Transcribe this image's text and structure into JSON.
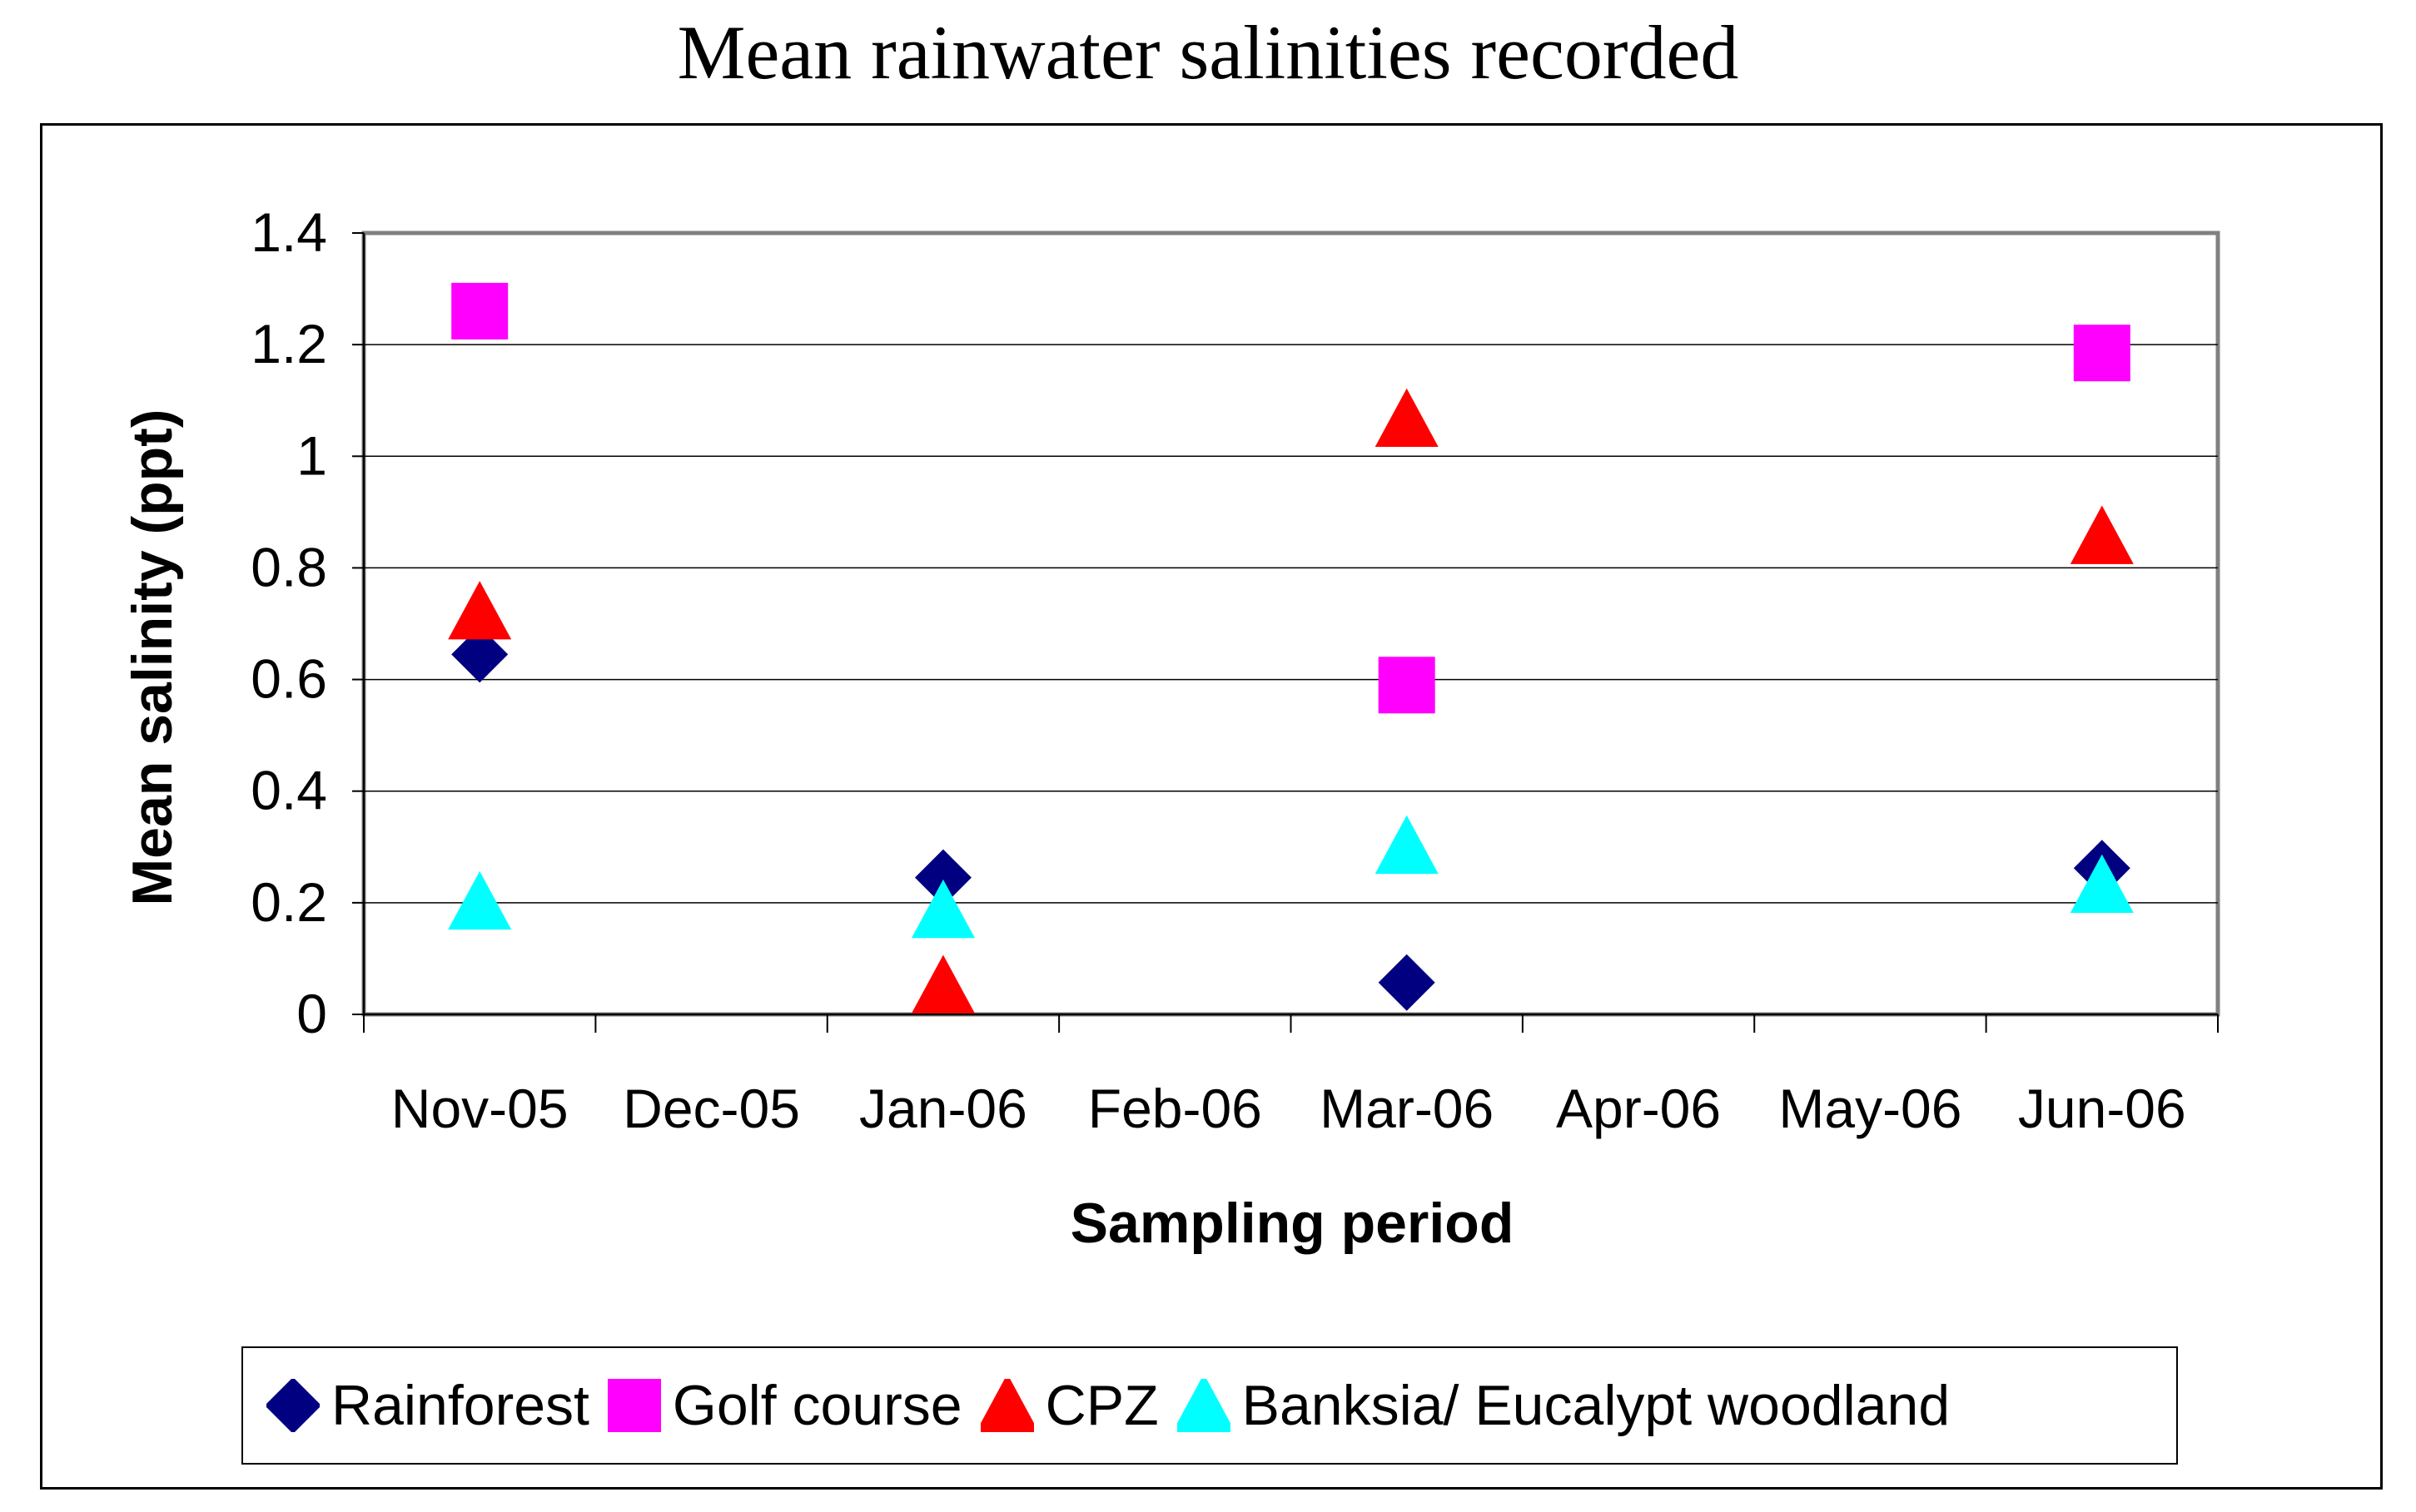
{
  "chart_data": {
    "type": "scatter",
    "title": "Mean rainwater salinities recorded",
    "xlabel": "Sampling period",
    "ylabel": "Mean salinity (ppt)",
    "categories": [
      "Nov-05",
      "Dec-05",
      "Jan-06",
      "Feb-06",
      "Mar-06",
      "Apr-06",
      "May-06",
      "Jun-06"
    ],
    "ylim": [
      0,
      1.4
    ],
    "yticks": [
      0,
      0.2,
      0.4,
      0.6,
      0.8,
      1,
      1.2,
      1.4
    ],
    "ytick_labels": [
      "0",
      "0.2",
      "0.4",
      "0.6",
      "0.8",
      "1",
      "1.2",
      "1.4"
    ],
    "grid": true,
    "legend_position": "bottom",
    "series": [
      {
        "name": "Rainforest",
        "marker": "diamond",
        "color": "#000080",
        "values": [
          0.645,
          null,
          0.245,
          null,
          0.057,
          null,
          null,
          0.262
        ]
      },
      {
        "name": "Golf course",
        "marker": "square",
        "color": "#ff00ff",
        "values": [
          1.26,
          null,
          null,
          null,
          0.59,
          null,
          null,
          1.185
        ]
      },
      {
        "name": "CPZ",
        "marker": "triangle",
        "color": "#ff0000",
        "values": [
          0.72,
          null,
          0.05,
          null,
          1.065,
          null,
          null,
          0.855
        ]
      },
      {
        "name": "Banksia/ Eucalypt woodland",
        "marker": "triangle",
        "color": "#00ffff",
        "values": [
          0.2,
          null,
          0.185,
          null,
          0.3,
          null,
          null,
          0.23
        ]
      }
    ]
  }
}
